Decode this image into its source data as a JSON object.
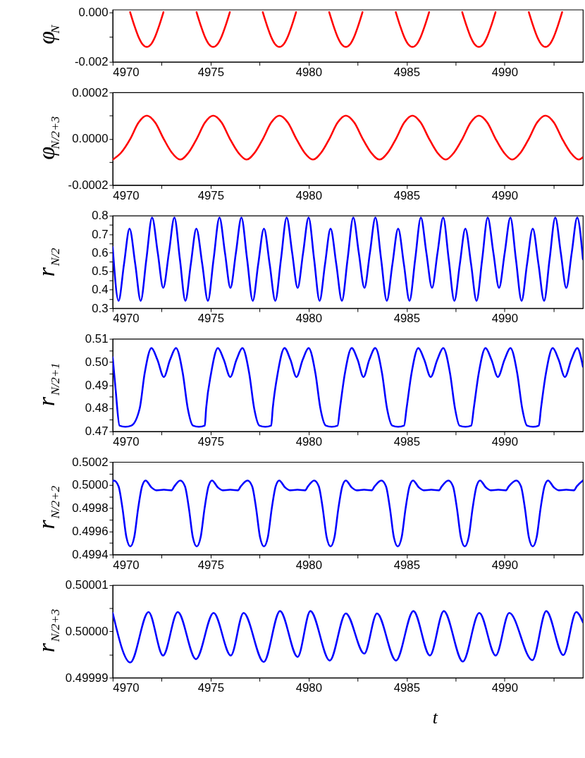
{
  "chart_data": [
    {
      "type": "line",
      "ylabel": "φ$_{N}$",
      "xlim": [
        4970,
        4994
      ],
      "xticks": [
        4970,
        {
          "value": 4972.5,
          "label": null
        },
        4975,
        {
          "value": 4977.5,
          "label": null
        },
        4980,
        {
          "value": 4982.5,
          "label": null
        },
        4985,
        {
          "value": 4987.5,
          "label": null
        },
        4990,
        {
          "value": 4992.5,
          "label": null
        }
      ],
      "ylim": [
        -0.002,
        0.0001
      ],
      "yticks": [
        {
          "value": -0.002,
          "label": "-0.002"
        },
        {
          "value": -0.001,
          "label": null
        },
        {
          "value": 0.0,
          "label": "0.000"
        }
      ],
      "series": [
        {
          "color": "#ff0000",
          "x": [
            4970.89,
            4971.11,
            4971.32,
            4971.53,
            4971.74,
            4971.95,
            4972.16,
            4972.37,
            4972.59,
            4973.45,
            4974.28,
            4974.5,
            4974.71,
            4974.92,
            4975.13,
            4975.34,
            4975.55,
            4975.76,
            4975.98,
            4976.83,
            4977.66,
            4977.88,
            4978.09,
            4978.3,
            4978.51,
            4978.72,
            4978.93,
            4979.14,
            4979.36,
            4980.22,
            4981.05,
            4981.27,
            4981.48,
            4981.69,
            4981.9,
            4982.11,
            4982.32,
            4982.53,
            4982.75,
            4983.62,
            4984.45,
            4984.67,
            4984.88,
            4985.09,
            4985.3,
            4985.51,
            4985.72,
            4985.93,
            4986.15,
            4987.0,
            4987.84,
            4988.06,
            4988.27,
            4988.48,
            4988.69,
            4988.9,
            4989.11,
            4989.32,
            4989.54,
            4990.39,
            4991.24,
            4991.46,
            4991.67,
            4991.88,
            4992.09,
            4992.3,
            4992.51,
            4992.72,
            4992.94
          ],
          "values": [
            0,
            -0.00055,
            -0.001,
            -0.0013,
            -0.0014,
            -0.0013,
            -0.001,
            -0.00055,
            0,
            null,
            0,
            -0.00055,
            -0.001,
            -0.0013,
            -0.0014,
            -0.0013,
            -0.001,
            -0.00055,
            0,
            null,
            0,
            -0.00055,
            -0.001,
            -0.0013,
            -0.0014,
            -0.0013,
            -0.001,
            -0.00055,
            0,
            null,
            0,
            -0.00055,
            -0.001,
            -0.0013,
            -0.0014,
            -0.0013,
            -0.001,
            -0.00055,
            0,
            null,
            0,
            -0.00055,
            -0.001,
            -0.0013,
            -0.0014,
            -0.0013,
            -0.001,
            -0.00055,
            0,
            null,
            0,
            -0.00055,
            -0.001,
            -0.0013,
            -0.0014,
            -0.0013,
            -0.001,
            -0.00055,
            0,
            null,
            0,
            -0.00055,
            -0.001,
            -0.0013,
            -0.0014,
            -0.0013,
            -0.001,
            -0.00055,
            0
          ]
        }
      ]
    },
    {
      "type": "line",
      "ylabel": "φ$_{N/2+3}$",
      "xlim": [
        4970,
        4994
      ],
      "xticks": [
        4970,
        {
          "value": 4972.5,
          "label": null
        },
        4975,
        {
          "value": 4977.5,
          "label": null
        },
        4980,
        {
          "value": 4982.5,
          "label": null
        },
        4985,
        {
          "value": 4987.5,
          "label": null
        },
        4990,
        {
          "value": 4992.5,
          "label": null
        }
      ],
      "ylim": [
        -0.0002,
        0.0002
      ],
      "yticks": [
        {
          "value": -0.0002,
          "label": "-0.0002"
        },
        {
          "value": -0.0001,
          "label": null
        },
        {
          "value": 0.0,
          "label": "0.0000"
        },
        {
          "value": 0.0001,
          "label": null
        },
        {
          "value": 0.0002,
          "label": "0.0002"
        }
      ],
      "series": [
        {
          "color": "#ff0000",
          "x": [
            4970.0,
            4970.43,
            4970.9,
            4971.32,
            4971.74,
            4972.17,
            4972.6,
            4973.02,
            4973.45,
            4973.87,
            4974.29,
            4974.71,
            4975.13,
            4975.56,
            4975.98,
            4976.41,
            4976.83,
            4977.25,
            4977.67,
            4978.09,
            4978.51,
            4978.94,
            4979.37,
            4979.79,
            4980.22,
            4980.64,
            4981.06,
            4981.48,
            4981.9,
            4982.33,
            4982.76,
            4983.19,
            4983.62,
            4984.04,
            4984.46,
            4984.88,
            4985.3,
            4985.72,
            4986.15,
            4986.57,
            4987.0,
            4987.42,
            4987.85,
            4988.27,
            4988.69,
            4989.12,
            4989.54,
            4989.97,
            4990.39,
            4990.82,
            4991.24,
            4991.66,
            4992.09,
            4992.52,
            4992.94,
            4993.37,
            4993.79,
            4994.0
          ],
          "values": [
            -9e-05,
            -6e-05,
            0.0,
            7e-05,
            0.0001,
            7e-05,
            0.0,
            -6e-05,
            -9e-05,
            -6e-05,
            0.0,
            7e-05,
            0.0001,
            7e-05,
            0.0,
            -6e-05,
            -9e-05,
            -6e-05,
            0.0,
            7e-05,
            0.0001,
            7e-05,
            0.0,
            -6e-05,
            -9e-05,
            -6e-05,
            0.0,
            7e-05,
            0.0001,
            7e-05,
            0.0,
            -6e-05,
            -9e-05,
            -6e-05,
            0.0,
            7e-05,
            0.0001,
            7e-05,
            0.0,
            -6e-05,
            -9e-05,
            -6e-05,
            0.0,
            7e-05,
            0.0001,
            7e-05,
            0.0,
            -6e-05,
            -9e-05,
            -6e-05,
            0.0,
            7e-05,
            0.0001,
            7e-05,
            0.0,
            -6e-05,
            -9e-05,
            -8e-05
          ]
        }
      ]
    },
    {
      "type": "line",
      "ylabel": "r$_{N/2}$",
      "xlim": [
        4970,
        4994
      ],
      "xticks": [
        4970,
        {
          "value": 4972.5,
          "label": null
        },
        4975,
        {
          "value": 4977.5,
          "label": null
        },
        4980,
        {
          "value": 4982.5,
          "label": null
        },
        4985,
        {
          "value": 4987.5,
          "label": null
        },
        4990,
        {
          "value": 4992.5,
          "label": null
        }
      ],
      "ylim": [
        0.3,
        0.8
      ],
      "yticks": [
        {
          "value": 0.3,
          "label": "0.3"
        },
        {
          "value": 0.35,
          "label": null
        },
        {
          "value": 0.4,
          "label": "0.4"
        },
        {
          "value": 0.45,
          "label": null
        },
        {
          "value": 0.5,
          "label": "0.5"
        },
        {
          "value": 0.55,
          "label": null
        },
        {
          "value": 0.6,
          "label": "0.6"
        },
        {
          "value": 0.65,
          "label": null
        },
        {
          "value": 0.7,
          "label": "0.7"
        },
        {
          "value": 0.75,
          "label": null
        },
        {
          "value": 0.8,
          "label": "0.8"
        }
      ],
      "series": [
        {
          "color": "#0000ff",
          "x": [
            4970.0,
            4970.3,
            4970.58,
            4970.86,
            4971.15,
            4971.43,
            4971.72,
            4972.01,
            4972.3,
            4972.58,
            4972.87,
            4973.15,
            4973.43,
            4973.71,
            4973.99,
            4974.27,
            4974.57,
            4974.86,
            4975.15,
            4975.45,
            4975.73,
            4976.01,
            4976.29,
            4976.57,
            4976.86,
            4977.15,
            4977.43,
            4977.72,
            4978.01,
            4978.3,
            4978.59,
            4978.88,
            4979.16,
            4979.44,
            4979.72,
            4980.0,
            4980.28,
            4980.56,
            4980.84,
            4981.12,
            4981.41,
            4981.7,
            4981.99,
            4982.28,
            4982.56,
            4982.85,
            4983.13,
            4983.41,
            4983.7,
            4983.99,
            4984.28,
            4984.57,
            4984.86,
            4985.15,
            4985.44,
            4985.73,
            4986.01,
            4986.3,
            4986.58,
            4986.87,
            4987.15,
            4987.44,
            4987.72,
            4988.0,
            4988.29,
            4988.57,
            4988.86,
            4989.14,
            4989.43,
            4989.72,
            4990.01,
            4990.3,
            4990.58,
            4990.87,
            4991.15,
            4991.44,
            4991.73,
            4992.02,
            4992.3,
            4992.59,
            4992.87,
            4993.15,
            4993.43,
            4993.71,
            4994.0
          ],
          "values": [
            0.63,
            0.34,
            0.54,
            0.73,
            0.54,
            0.34,
            0.565,
            0.79,
            0.6,
            0.41,
            0.6,
            0.79,
            0.565,
            0.34,
            0.54,
            0.73,
            0.54,
            0.34,
            0.565,
            0.79,
            0.6,
            0.41,
            0.6,
            0.79,
            0.565,
            0.34,
            0.54,
            0.73,
            0.54,
            0.34,
            0.565,
            0.79,
            0.6,
            0.41,
            0.6,
            0.79,
            0.565,
            0.34,
            0.54,
            0.73,
            0.54,
            0.34,
            0.565,
            0.79,
            0.6,
            0.41,
            0.6,
            0.79,
            0.565,
            0.34,
            0.54,
            0.73,
            0.54,
            0.34,
            0.565,
            0.79,
            0.6,
            0.41,
            0.6,
            0.79,
            0.565,
            0.34,
            0.54,
            0.73,
            0.54,
            0.34,
            0.565,
            0.79,
            0.6,
            0.41,
            0.6,
            0.79,
            0.565,
            0.34,
            0.54,
            0.73,
            0.54,
            0.34,
            0.565,
            0.79,
            0.6,
            0.41,
            0.6,
            0.79,
            0.565
          ]
        }
      ]
    },
    {
      "type": "line",
      "ylabel": "r$_{N/2+1}$",
      "xlim": [
        4970,
        4994
      ],
      "xticks": [
        4970,
        {
          "value": 4972.5,
          "label": null
        },
        4975,
        {
          "value": 4977.5,
          "label": null
        },
        4980,
        {
          "value": 4982.5,
          "label": null
        },
        4985,
        {
          "value": 4987.5,
          "label": null
        },
        4990,
        {
          "value": 4992.5,
          "label": null
        }
      ],
      "ylim": [
        0.47,
        0.51
      ],
      "yticks": [
        {
          "value": 0.47,
          "label": "0.47"
        },
        {
          "value": 0.475,
          "label": null
        },
        {
          "value": 0.48,
          "label": "0.48"
        },
        {
          "value": 0.485,
          "label": null
        },
        {
          "value": 0.49,
          "label": "0.49"
        },
        {
          "value": 0.495,
          "label": null
        },
        {
          "value": 0.5,
          "label": "0.50"
        },
        {
          "value": 0.505,
          "label": null
        },
        {
          "value": 0.51,
          "label": "0.51"
        }
      ],
      "series": [
        {
          "color": "#0000ff",
          "x": [
            4970.0,
            4970.15,
            4970.35,
            4970.65,
            4970.95,
            4971.38,
            4971.63,
            4971.98,
            4972.28,
            4972.61,
            4972.93,
            4973.23,
            4973.58,
            4973.83,
            4974.1,
            4974.4,
            4974.7,
            4974.77,
            4975.02,
            4975.37,
            4975.67,
            4976.0,
            4976.32,
            4976.62,
            4976.97,
            4977.22,
            4977.49,
            4977.79,
            4978.09,
            4978.17,
            4978.42,
            4978.77,
            4979.07,
            4979.38,
            4979.7,
            4980.0,
            4980.35,
            4980.6,
            4980.88,
            4981.18,
            4981.48,
            4981.6,
            4981.85,
            4982.2,
            4982.5,
            4982.8,
            4983.1,
            4983.4,
            4983.75,
            4984.0,
            4984.27,
            4984.57,
            4984.87,
            4985.0,
            4985.25,
            4985.6,
            4985.9,
            4986.23,
            4986.57,
            4986.87,
            4987.22,
            4987.47,
            4987.7,
            4988.0,
            4988.3,
            4988.43,
            4988.68,
            4989.03,
            4989.33,
            4989.66,
            4990.0,
            4990.3,
            4990.65,
            4990.9,
            4991.15,
            4991.45,
            4991.75,
            4991.86,
            4992.11,
            4992.46,
            4992.76,
            4993.08,
            4993.41,
            4993.71,
            4994.0
          ],
          "values": [
            0.502,
            0.488,
            0.4725,
            0.472,
            0.4725,
            0.48,
            0.495,
            0.506,
            0.501,
            0.4935,
            0.501,
            0.506,
            0.495,
            0.48,
            0.4725,
            0.472,
            0.4725,
            0.48,
            0.495,
            0.506,
            0.501,
            0.4935,
            0.501,
            0.506,
            0.495,
            0.48,
            0.4725,
            0.472,
            0.4725,
            0.48,
            0.495,
            0.506,
            0.501,
            0.4935,
            0.501,
            0.506,
            0.495,
            0.48,
            0.4725,
            0.472,
            0.4725,
            0.48,
            0.495,
            0.506,
            0.501,
            0.4935,
            0.501,
            0.506,
            0.495,
            0.48,
            0.4725,
            0.472,
            0.4725,
            0.48,
            0.495,
            0.506,
            0.501,
            0.4935,
            0.501,
            0.506,
            0.495,
            0.48,
            0.4725,
            0.472,
            0.4725,
            0.48,
            0.495,
            0.506,
            0.501,
            0.4935,
            0.501,
            0.506,
            0.495,
            0.48,
            0.4725,
            0.472,
            0.4725,
            0.48,
            0.495,
            0.506,
            0.501,
            0.4935,
            0.501,
            0.506,
            0.498
          ]
        }
      ]
    },
    {
      "type": "line",
      "ylabel": "r$_{N/2+2}$",
      "xlim": [
        4970,
        4994
      ],
      "xticks": [
        4970,
        {
          "value": 4972.5,
          "label": null
        },
        4975,
        {
          "value": 4977.5,
          "label": null
        },
        4980,
        {
          "value": 4982.5,
          "label": null
        },
        4985,
        {
          "value": 4987.5,
          "label": null
        },
        4990,
        {
          "value": 4992.5,
          "label": null
        }
      ],
      "ylim": [
        0.4994,
        0.5002
      ],
      "yticks": [
        {
          "value": 0.4994,
          "label": "0.4994"
        },
        {
          "value": 0.4995,
          "label": null
        },
        {
          "value": 0.4996,
          "label": "0.4996"
        },
        {
          "value": 0.4997,
          "label": null
        },
        {
          "value": 0.4998,
          "label": "0.4998"
        },
        {
          "value": 0.4999,
          "label": null
        },
        {
          "value": 0.5,
          "label": "0.5000"
        },
        {
          "value": 0.5001,
          "label": null
        },
        {
          "value": 0.5002,
          "label": "0.5002"
        }
      ],
      "series": [
        {
          "color": "#0000ff",
          "x": [
            4970.0,
            4970.06,
            4970.3,
            4970.5,
            4970.7,
            4970.9,
            4971.1,
            4971.3,
            4971.5,
            4971.68,
            4971.98,
            4972.23,
            4972.61,
            4973.0,
            4973.15,
            4973.45,
            4973.69,
            4973.89,
            4974.09,
            4974.29,
            4974.49,
            4974.69,
            4974.89,
            4975.07,
            4975.37,
            4975.62,
            4976.0,
            4976.39,
            4976.54,
            4976.88,
            4977.12,
            4977.32,
            4977.52,
            4977.72,
            4977.92,
            4978.12,
            4978.32,
            4978.5,
            4978.8,
            4979.05,
            4979.43,
            4979.82,
            4979.97,
            4980.28,
            4980.52,
            4980.72,
            4980.92,
            4981.12,
            4981.32,
            4981.52,
            4981.72,
            4981.9,
            4982.2,
            4982.45,
            4982.83,
            4983.22,
            4983.37,
            4983.71,
            4983.95,
            4984.15,
            4984.35,
            4984.55,
            4984.75,
            4984.95,
            4985.15,
            4985.33,
            4985.63,
            4985.88,
            4986.26,
            4986.65,
            4986.8,
            4987.13,
            4987.37,
            4987.57,
            4987.77,
            4987.97,
            4988.17,
            4988.37,
            4988.57,
            4988.75,
            4989.05,
            4989.3,
            4989.68,
            4990.07,
            4990.22,
            4990.6,
            4990.84,
            4991.04,
            4991.24,
            4991.44,
            4991.64,
            4991.84,
            4992.04,
            4992.22,
            4992.52,
            4992.77,
            4993.15,
            4993.54,
            4993.69,
            4994.0
          ],
          "values": [
            0.50003,
            0.50004,
            0.49999,
            0.4998,
            0.49955,
            0.49947,
            0.49955,
            0.4998,
            0.49999,
            0.50004,
            0.49998,
            0.499955,
            0.49996,
            0.499955,
            0.49999,
            0.50004,
            0.49999,
            0.4998,
            0.49955,
            0.49947,
            0.49955,
            0.4998,
            0.49999,
            0.50004,
            0.49998,
            0.499955,
            0.49996,
            0.499955,
            0.49999,
            0.50004,
            0.49999,
            0.4998,
            0.49955,
            0.49947,
            0.49955,
            0.4998,
            0.49999,
            0.50004,
            0.49998,
            0.499955,
            0.49996,
            0.499955,
            0.49999,
            0.50004,
            0.49999,
            0.4998,
            0.49955,
            0.49947,
            0.49955,
            0.4998,
            0.49999,
            0.50004,
            0.49998,
            0.499955,
            0.49996,
            0.499955,
            0.49999,
            0.50004,
            0.49999,
            0.4998,
            0.49955,
            0.49947,
            0.49955,
            0.4998,
            0.49999,
            0.50004,
            0.49998,
            0.499955,
            0.49996,
            0.499955,
            0.49999,
            0.50004,
            0.49999,
            0.4998,
            0.49955,
            0.49947,
            0.49955,
            0.4998,
            0.49999,
            0.50004,
            0.49998,
            0.499955,
            0.49996,
            0.499955,
            0.49999,
            0.50004,
            0.49999,
            0.4998,
            0.49955,
            0.49947,
            0.49955,
            0.4998,
            0.49999,
            0.50004,
            0.49998,
            0.499955,
            0.49996,
            0.499955,
            0.49999,
            0.50004
          ]
        }
      ]
    },
    {
      "type": "line",
      "ylabel": "r$_{N/2+3}$",
      "xlabel": "t",
      "xlim": [
        4970,
        4994
      ],
      "xticks": [
        4970,
        {
          "value": 4972.5,
          "label": null
        },
        4975,
        {
          "value": 4977.5,
          "label": null
        },
        4980,
        {
          "value": 4982.5,
          "label": null
        },
        4985,
        {
          "value": 4987.5,
          "label": null
        },
        4990,
        {
          "value": 4992.5,
          "label": null
        }
      ],
      "ylim": [
        0.49999,
        0.50001
      ],
      "yticks": [
        {
          "value": 0.49999,
          "label": "0.49999"
        },
        {
          "value": 0.499995,
          "label": null
        },
        {
          "value": 0.5,
          "label": "0.50000"
        },
        {
          "value": 0.500005,
          "label": null
        },
        {
          "value": 0.50001,
          "label": "0.50001"
        }
      ],
      "series": [
        {
          "color": "#0000ff",
          "x": [
            4970.0,
            4970.9,
            4971.83,
            4972.57,
            4973.32,
            4974.25,
            4975.15,
            4976.03,
            4976.68,
            4977.71,
            4978.54,
            4979.44,
            4980.09,
            4981.08,
            4981.9,
            4982.84,
            4983.49,
            4984.46,
            4985.35,
            4986.19,
            4986.9,
            4987.87,
            4988.71,
            4989.55,
            4990.24,
            4991.42,
            4992.13,
            4993.0,
            4993.66,
            4994.0
          ],
          "values": [
            0.500004,
            0.4999933,
            0.5000042,
            0.4999948,
            0.5000042,
            0.499994,
            0.500004,
            0.4999948,
            0.500004,
            0.4999934,
            0.5000044,
            0.4999945,
            0.5000044,
            0.4999937,
            0.5000039,
            0.4999952,
            0.5000039,
            0.4999937,
            0.5000044,
            0.4999948,
            0.5000044,
            0.4999935,
            0.500004,
            0.4999948,
            0.500004,
            0.4999938,
            0.5000044,
            0.4999949,
            0.5000042,
            0.500002
          ]
        }
      ]
    }
  ]
}
